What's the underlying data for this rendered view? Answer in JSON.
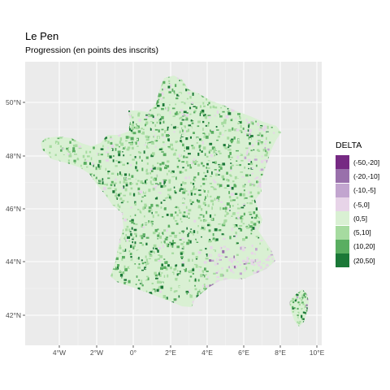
{
  "title": "Le Pen",
  "subtitle": "Progression (en points des inscrits)",
  "legend": {
    "title": "DELTA",
    "placement": "right",
    "items": [
      {
        "label": "(-50,-20]",
        "color": "#762a83"
      },
      {
        "label": "(-20,-10]",
        "color": "#9970ab"
      },
      {
        "label": "(-10,-5]",
        "color": "#c2a5cf"
      },
      {
        "label": "(-5,0]",
        "color": "#e7d4e8"
      },
      {
        "label": "(0,5]",
        "color": "#d9f0d3"
      },
      {
        "label": "(5,10]",
        "color": "#a6dba0"
      },
      {
        "label": "(10,20]",
        "color": "#5aae61"
      },
      {
        "label": "(20,50]",
        "color": "#1b7837"
      }
    ]
  },
  "map": {
    "region": "France",
    "panel_color": "#ebebeb",
    "grid": true,
    "x_ticks": [
      "4°W",
      "2°W",
      "0°",
      "2°E",
      "4°E",
      "6°E",
      "8°E",
      "10°E"
    ],
    "y_ticks": [
      "50°N",
      "48°N",
      "46°N",
      "44°N",
      "42°N"
    ]
  }
}
